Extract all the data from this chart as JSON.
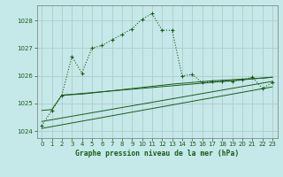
{
  "xlabel": "Graphe pression niveau de la mer (hPa)",
  "background_color": "#c5e8e8",
  "grid_color": "#b0cccc",
  "line_color": "#1a5c1a",
  "ylim": [
    1023.75,
    1028.55
  ],
  "xlim": [
    -0.5,
    23.5
  ],
  "yticks": [
    1024,
    1025,
    1026,
    1027,
    1028
  ],
  "xticks": [
    0,
    1,
    2,
    3,
    4,
    5,
    6,
    7,
    8,
    9,
    10,
    11,
    12,
    13,
    14,
    15,
    16,
    17,
    18,
    19,
    20,
    21,
    22,
    23
  ],
  "main_x": [
    0,
    1,
    2,
    3,
    4,
    5,
    6,
    7,
    8,
    9,
    10,
    11,
    12,
    13,
    14,
    15,
    16,
    17,
    18,
    19,
    20,
    21,
    22,
    23
  ],
  "main_y": [
    1024.2,
    1024.75,
    1025.3,
    1026.7,
    1026.1,
    1027.0,
    1027.1,
    1027.3,
    1027.5,
    1027.7,
    1028.05,
    1028.25,
    1027.65,
    1027.65,
    1026.0,
    1026.05,
    1025.75,
    1025.8,
    1025.8,
    1025.8,
    1025.85,
    1025.95,
    1025.55,
    1025.75
  ],
  "smooth_x": [
    0,
    1,
    2,
    3,
    4,
    5,
    6,
    7,
    8,
    9,
    10,
    11,
    12,
    13,
    14,
    15,
    16,
    17,
    18,
    19,
    20,
    21,
    22,
    23
  ],
  "smooth_y": [
    1024.75,
    1024.78,
    1025.3,
    1025.32,
    1025.34,
    1025.38,
    1025.42,
    1025.46,
    1025.5,
    1025.54,
    1025.58,
    1025.62,
    1025.66,
    1025.7,
    1025.73,
    1025.76,
    1025.79,
    1025.82,
    1025.84,
    1025.86,
    1025.88,
    1025.9,
    1025.92,
    1025.95
  ],
  "line2_x": [
    0,
    23
  ],
  "line2_y": [
    1024.1,
    1025.6
  ],
  "line3_x": [
    0,
    23
  ],
  "line3_y": [
    1024.35,
    1025.8
  ],
  "line4_x": [
    2,
    23
  ],
  "line4_y": [
    1025.3,
    1025.95
  ]
}
